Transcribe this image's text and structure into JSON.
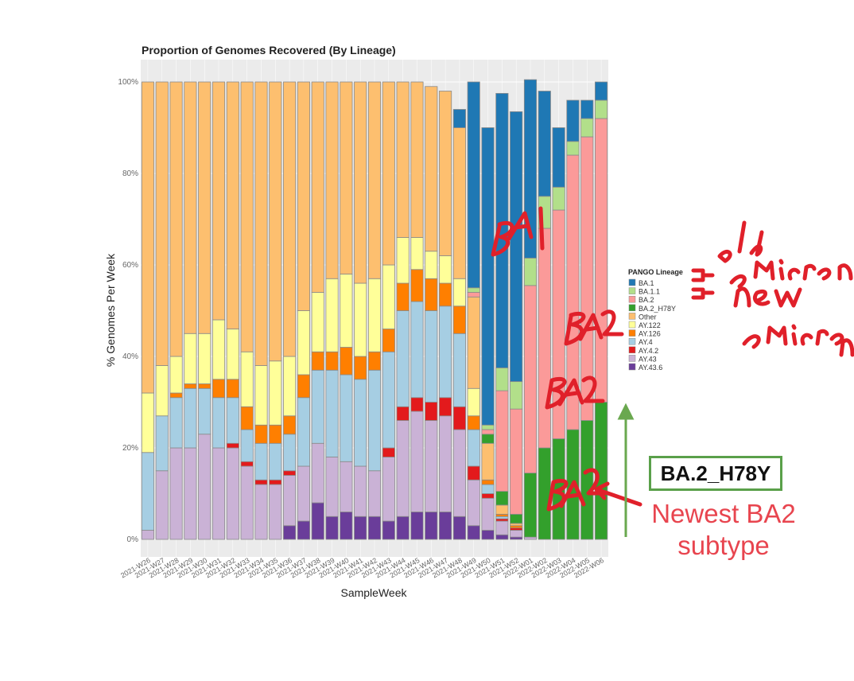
{
  "chart_data": {
    "type": "bar",
    "stacked": true,
    "title": "Proportion of Genomes Recovered (By Lineage)",
    "xlabel": "SampleWeek",
    "ylabel": "% Genomes Per Week",
    "ylim": [
      0,
      100
    ],
    "yticks": [
      "0%",
      "20%",
      "40%",
      "60%",
      "80%",
      "100%"
    ],
    "grid": true,
    "legend_title": "PANGO Lineage",
    "legend_position": "right",
    "categories": [
      "2021-W26",
      "2021-W27",
      "2021-W28",
      "2021-W29",
      "2021-W30",
      "2021-W31",
      "2021-W32",
      "2021-W33",
      "2021-W34",
      "2021-W35",
      "2021-W36",
      "2021-W37",
      "2021-W38",
      "2021-W39",
      "2021-W40",
      "2021-W41",
      "2021-W42",
      "2021-W43",
      "2021-W44",
      "2021-W45",
      "2021-W46",
      "2021-W47",
      "2021-W48",
      "2021-W49",
      "2021-W50",
      "2021-W51",
      "2021-W52",
      "2022-W01",
      "2022-W02",
      "2022-W03",
      "2022-W04",
      "2022-W05",
      "2022-W06"
    ],
    "series": [
      {
        "name": "AY.43.6",
        "color": "#6a3d9a",
        "values": [
          0,
          0,
          0,
          0,
          0,
          0,
          0,
          0,
          0,
          0,
          3,
          4,
          8,
          5,
          6,
          5,
          5,
          4,
          5,
          6,
          6,
          6,
          5,
          3,
          2,
          1,
          0.5,
          0,
          0,
          0,
          0,
          0,
          0
        ]
      },
      {
        "name": "AY.43",
        "color": "#cab2d6",
        "values": [
          2,
          15,
          20,
          20,
          23,
          20,
          20,
          16,
          12,
          12,
          11,
          12,
          13,
          13,
          11,
          11,
          10,
          14,
          21,
          22,
          20,
          21,
          19,
          10,
          7,
          3,
          1.5,
          0.5,
          0,
          0,
          0,
          0,
          0
        ]
      },
      {
        "name": "AY.4.2",
        "color": "#e31a1c",
        "values": [
          0,
          0,
          0,
          0,
          0,
          0,
          1,
          1,
          1,
          1,
          1,
          0,
          0,
          0,
          0,
          0,
          0,
          2,
          3,
          3,
          4,
          4,
          5,
          3,
          1,
          0.5,
          0.5,
          0,
          0,
          0,
          0,
          0,
          0
        ]
      },
      {
        "name": "AY.4",
        "color": "#a6cee3",
        "values": [
          17,
          12,
          11,
          13,
          10,
          11,
          10,
          7,
          8,
          8,
          8,
          15,
          16,
          19,
          19,
          19,
          22,
          21,
          21,
          21,
          20,
          20,
          16,
          8,
          2,
          0.5,
          0,
          0,
          0,
          0,
          0,
          0,
          0
        ]
      },
      {
        "name": "AY.126",
        "color": "#ff7f00",
        "values": [
          0,
          0,
          1,
          1,
          1,
          4,
          4,
          5,
          4,
          4,
          4,
          5,
          4,
          4,
          6,
          5,
          4,
          5,
          6,
          7,
          7,
          5,
          6,
          3,
          1,
          0.5,
          0.5,
          0,
          0,
          0,
          0,
          0,
          0
        ]
      },
      {
        "name": "AY.122",
        "color": "#ffff99",
        "values": [
          13,
          11,
          8,
          11,
          11,
          13,
          11,
          12,
          13,
          14,
          13,
          14,
          13,
          16,
          16,
          16,
          16,
          14,
          10,
          7,
          6,
          6,
          6,
          6,
          0,
          0,
          0,
          0,
          0,
          0,
          0,
          0,
          0
        ]
      },
      {
        "name": "Other",
        "color": "#fdbf6f",
        "values": [
          68,
          62,
          60,
          55,
          55,
          52,
          54,
          59,
          62,
          61,
          60,
          50,
          46,
          43,
          42,
          44,
          43,
          40,
          34,
          34,
          36,
          36,
          33,
          20,
          8,
          2,
          0.5,
          0,
          0,
          0,
          0,
          0,
          0
        ]
      },
      {
        "name": "BA.2_H78Y",
        "color": "#33a02c",
        "values": [
          0,
          0,
          0,
          0,
          0,
          0,
          0,
          0,
          0,
          0,
          0,
          0,
          0,
          0,
          0,
          0,
          0,
          0,
          0,
          0,
          0,
          0,
          0,
          0,
          2,
          3,
          2,
          14,
          20,
          22,
          24,
          26,
          30
        ]
      },
      {
        "name": "BA.2",
        "color": "#fb9a99",
        "values": [
          0,
          0,
          0,
          0,
          0,
          0,
          0,
          0,
          0,
          0,
          0,
          0,
          0,
          0,
          0,
          0,
          0,
          0,
          0,
          0,
          0,
          0,
          0,
          1,
          1,
          22,
          23,
          41,
          48,
          50,
          60,
          62,
          62
        ]
      },
      {
        "name": "BA.1.1",
        "color": "#b2df8a",
        "values": [
          0,
          0,
          0,
          0,
          0,
          0,
          0,
          0,
          0,
          0,
          0,
          0,
          0,
          0,
          0,
          0,
          0,
          0,
          0,
          0,
          0,
          0,
          0,
          1,
          1,
          5,
          6,
          6,
          7,
          5,
          3,
          4,
          4
        ]
      },
      {
        "name": "BA.1",
        "color": "#1f78b4",
        "values": [
          0,
          0,
          0,
          0,
          0,
          0,
          0,
          0,
          0,
          0,
          0,
          0,
          0,
          0,
          0,
          0,
          0,
          0,
          0,
          0,
          0,
          0,
          4,
          45,
          65,
          60,
          59,
          39,
          23,
          13,
          9,
          4,
          4
        ]
      }
    ]
  },
  "legend_order": [
    "BA.1",
    "BA.1.1",
    "BA.2",
    "BA.2_H78Y",
    "Other",
    "AY.122",
    "AY.126",
    "AY.4",
    "AY.4.2",
    "AY.43",
    "AY.43.6"
  ],
  "annotations": {
    "callout_label": "BA.2_H78Y",
    "note": "Newest BA2\nsubtype",
    "note_color": "#e8454f",
    "callout_border_color": "#5aa04a"
  }
}
